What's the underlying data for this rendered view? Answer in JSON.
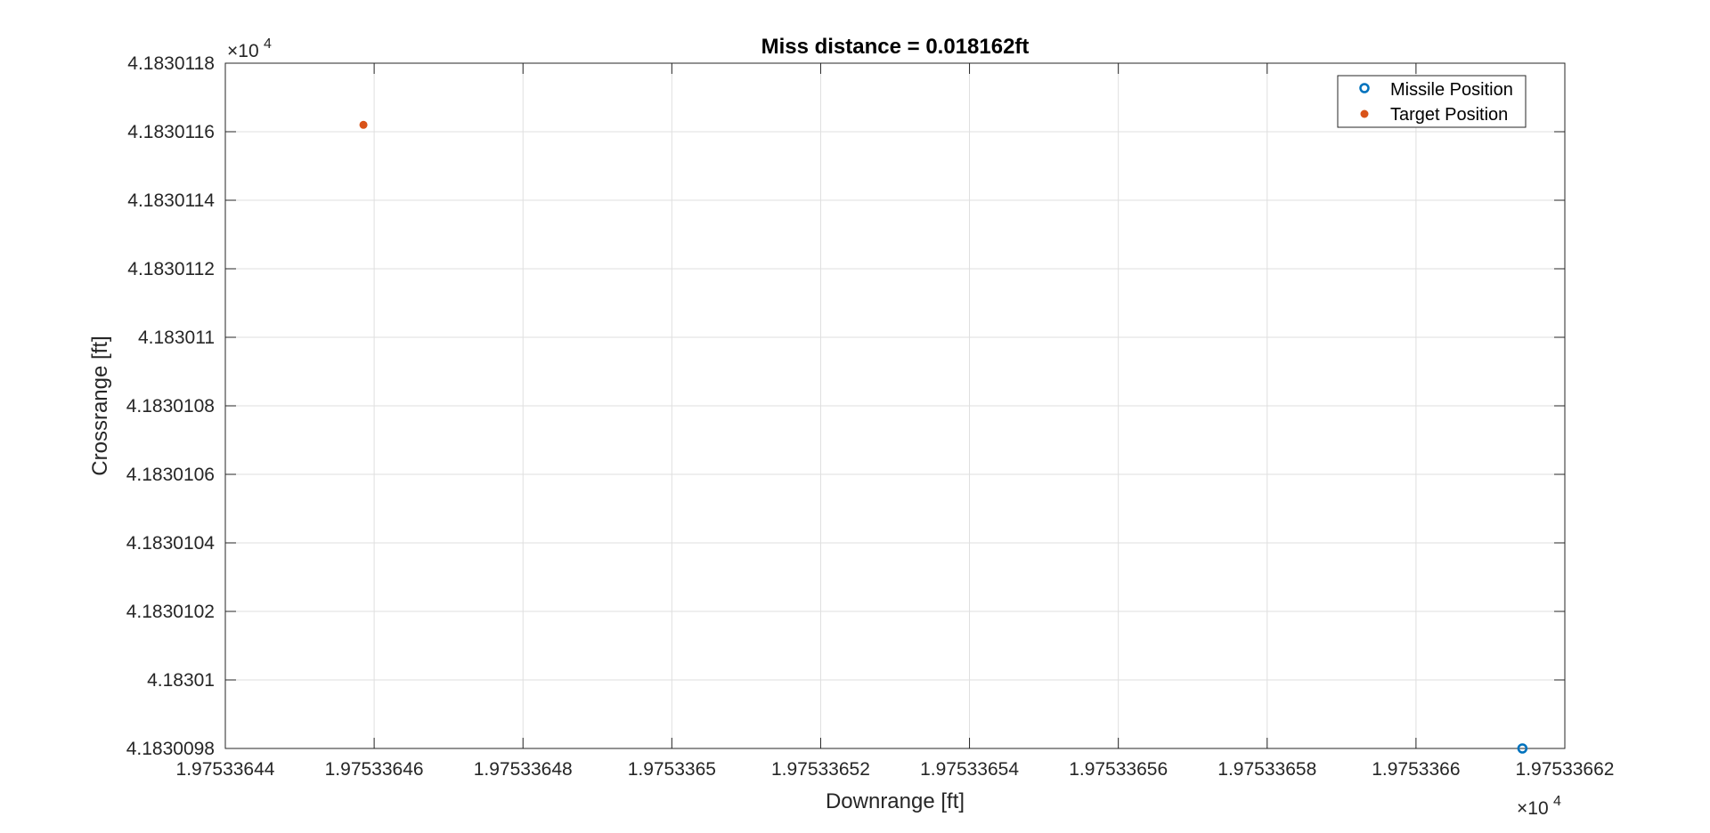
{
  "chart_data": {
    "type": "scatter",
    "title": "Miss distance = 0.018162ft",
    "xlabel": "Downrange [ft]",
    "ylabel": "Crossrange [ft]",
    "x_tick_labels": [
      "1.97533644",
      "1.97533646",
      "1.97533648",
      "1.9753365",
      "1.97533652",
      "1.97533654",
      "1.97533656",
      "1.97533658",
      "1.9753366",
      "1.97533662"
    ],
    "y_tick_labels": [
      "4.1830098",
      "4.18301",
      "4.1830102",
      "4.1830104",
      "4.1830106",
      "4.1830108",
      "4.183011",
      "4.1830112",
      "4.1830114",
      "4.1830116",
      "4.1830118"
    ],
    "x_exponent": {
      "base": "×10",
      "power": "4"
    },
    "y_exponent": {
      "base": "×10",
      "power": "4"
    },
    "xlim": [
      19753.3644,
      19753.3662
    ],
    "ylim": [
      41830.098,
      41830.118
    ],
    "grid": true,
    "legend_location": "top-right",
    "series": [
      {
        "name": "Missile Position",
        "marker": "open-circle",
        "color": "#0072BD",
        "points": [
          {
            "x": 19753.366143,
            "y": 41830.098
          }
        ]
      },
      {
        "name": "Target Position",
        "marker": "filled-dot",
        "color": "#D95319",
        "points": [
          {
            "x": 19753.3645856,
            "y": 41830.1162
          }
        ]
      }
    ]
  }
}
